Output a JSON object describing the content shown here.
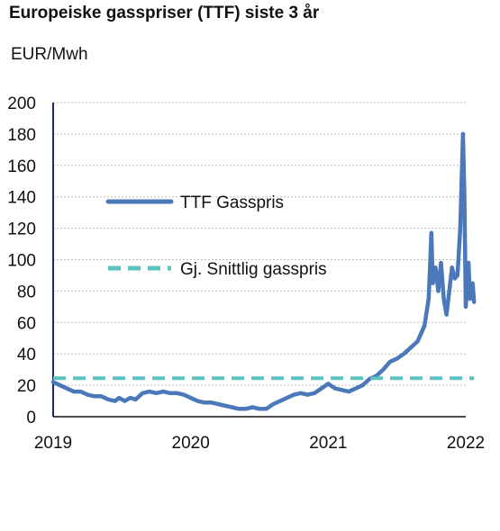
{
  "chart_data": {
    "type": "line",
    "title": "Europeiske gasspriser (TTF) siste 3 år",
    "ylabel": "EUR/Mwh",
    "xlabel": "",
    "xlim": [
      2019,
      2022
    ],
    "ylim": [
      0,
      200
    ],
    "x_ticks": [
      2019,
      2020,
      2021,
      2022
    ],
    "y_ticks": [
      0,
      20,
      40,
      60,
      80,
      100,
      120,
      140,
      160,
      180,
      200
    ],
    "grid": "horizontal",
    "legend_position": "center-left",
    "series": [
      {
        "name": "TTF Gasspris",
        "color": "#4a78b8",
        "style": "solid",
        "points": [
          [
            2019.0,
            22
          ],
          [
            2019.05,
            20
          ],
          [
            2019.1,
            18
          ],
          [
            2019.15,
            16
          ],
          [
            2019.2,
            16
          ],
          [
            2019.25,
            14
          ],
          [
            2019.3,
            13
          ],
          [
            2019.35,
            13
          ],
          [
            2019.4,
            11
          ],
          [
            2019.45,
            10
          ],
          [
            2019.48,
            12
          ],
          [
            2019.52,
            10
          ],
          [
            2019.56,
            12
          ],
          [
            2019.6,
            11
          ],
          [
            2019.65,
            15
          ],
          [
            2019.7,
            16
          ],
          [
            2019.75,
            15
          ],
          [
            2019.8,
            16
          ],
          [
            2019.85,
            15
          ],
          [
            2019.9,
            15
          ],
          [
            2019.95,
            14
          ],
          [
            2020.0,
            12
          ],
          [
            2020.05,
            10
          ],
          [
            2020.1,
            9
          ],
          [
            2020.15,
            9
          ],
          [
            2020.2,
            8
          ],
          [
            2020.25,
            7
          ],
          [
            2020.3,
            6
          ],
          [
            2020.35,
            5
          ],
          [
            2020.4,
            5
          ],
          [
            2020.45,
            6
          ],
          [
            2020.5,
            5
          ],
          [
            2020.55,
            5
          ],
          [
            2020.6,
            8
          ],
          [
            2020.65,
            10
          ],
          [
            2020.7,
            12
          ],
          [
            2020.75,
            14
          ],
          [
            2020.8,
            15
          ],
          [
            2020.85,
            14
          ],
          [
            2020.9,
            15
          ],
          [
            2020.95,
            18
          ],
          [
            2021.0,
            21
          ],
          [
            2021.05,
            18
          ],
          [
            2021.1,
            17
          ],
          [
            2021.15,
            16
          ],
          [
            2021.2,
            18
          ],
          [
            2021.25,
            20
          ],
          [
            2021.3,
            24
          ],
          [
            2021.35,
            26
          ],
          [
            2021.4,
            30
          ],
          [
            2021.45,
            35
          ],
          [
            2021.5,
            37
          ],
          [
            2021.55,
            40
          ],
          [
            2021.6,
            44
          ],
          [
            2021.65,
            48
          ],
          [
            2021.7,
            58
          ],
          [
            2021.73,
            75
          ],
          [
            2021.74,
            95
          ],
          [
            2021.75,
            117
          ],
          [
            2021.76,
            85
          ],
          [
            2021.78,
            95
          ],
          [
            2021.8,
            80
          ],
          [
            2021.82,
            98
          ],
          [
            2021.84,
            75
          ],
          [
            2021.86,
            65
          ],
          [
            2021.88,
            80
          ],
          [
            2021.9,
            95
          ],
          [
            2021.92,
            88
          ],
          [
            2021.94,
            90
          ],
          [
            2021.96,
            120
          ],
          [
            2021.97,
            150
          ],
          [
            2021.98,
            180
          ],
          [
            2021.99,
            140
          ],
          [
            2022.0,
            70
          ],
          [
            2022.02,
            98
          ],
          [
            2022.03,
            75
          ],
          [
            2022.05,
            85
          ],
          [
            2022.06,
            73
          ]
        ]
      },
      {
        "name": "Gj. Snittlig gasspris",
        "color": "#5ac3c0",
        "style": "dashed",
        "points": [
          [
            2019.0,
            24.5
          ],
          [
            2022.06,
            24.5
          ]
        ]
      }
    ]
  }
}
